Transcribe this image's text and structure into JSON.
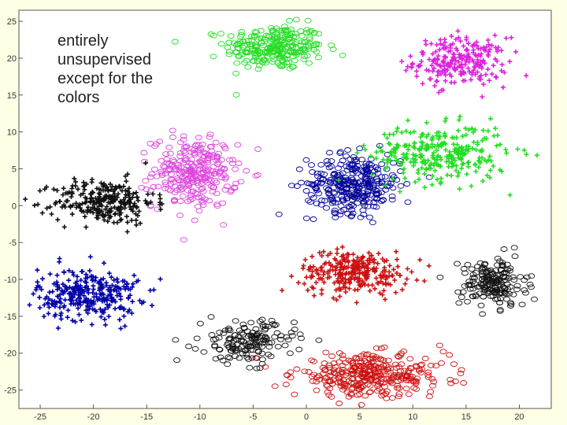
{
  "chart_data": {
    "type": "scatter",
    "title": "",
    "xlabel": "",
    "ylabel": "",
    "xlim": [
      -27,
      23
    ],
    "ylim": [
      -27.5,
      26.5
    ],
    "xticks": [
      -25,
      -20,
      -15,
      -10,
      -5,
      0,
      5,
      10,
      15,
      20
    ],
    "yticks": [
      25,
      20,
      15,
      10,
      5,
      0,
      -5,
      -10,
      -15,
      -20,
      -25
    ],
    "grid": false,
    "legend": "none",
    "annotation": "entirely\nunsupervised\nexcept for the\ncolors",
    "clusters": [
      {
        "color": "#22dd22",
        "marker": "o",
        "cx": -3,
        "cy": 21.5,
        "sx": 4.2,
        "sy": 2.8,
        "n": 260
      },
      {
        "color": "#dd22dd",
        "marker": "+",
        "cx": 14.5,
        "cy": 19.5,
        "sx": 4.0,
        "sy": 3.0,
        "n": 240
      },
      {
        "color": "#dd44dd",
        "marker": "o",
        "cx": -10.5,
        "cy": 4.5,
        "sx": 3.6,
        "sy": 4.3,
        "n": 280
      },
      {
        "color": "#111111",
        "marker": "+",
        "cx": -19,
        "cy": 0.5,
        "sx": 4.3,
        "sy": 2.8,
        "n": 270
      },
      {
        "color": "#000099",
        "marker": "o",
        "cx": 4.5,
        "cy": 3.0,
        "sx": 4.0,
        "sy": 3.6,
        "n": 320
      },
      {
        "color": "#22dd22",
        "marker": "+",
        "cx": 12.5,
        "cy": 7.0,
        "sx": 5.8,
        "sy": 3.5,
        "n": 300
      },
      {
        "color": "#0000aa",
        "marker": "+",
        "cx": -20.5,
        "cy": -12.0,
        "sx": 4.3,
        "sy": 3.2,
        "n": 300
      },
      {
        "color": "#cc1111",
        "marker": "+",
        "cx": 4.5,
        "cy": -9.0,
        "sx": 4.6,
        "sy": 2.6,
        "n": 280
      },
      {
        "color": "#111111",
        "marker": "o",
        "cx": 17.5,
        "cy": -10.5,
        "sx": 2.8,
        "sy": 3.0,
        "n": 180
      },
      {
        "color": "#111111",
        "marker": "o",
        "cx": -5.5,
        "cy": -18.5,
        "sx": 4.0,
        "sy": 2.6,
        "n": 160
      },
      {
        "color": "#cc1111",
        "marker": "o",
        "cx": 6.0,
        "cy": -23.0,
        "sx": 6.5,
        "sy": 2.6,
        "n": 340
      }
    ]
  }
}
